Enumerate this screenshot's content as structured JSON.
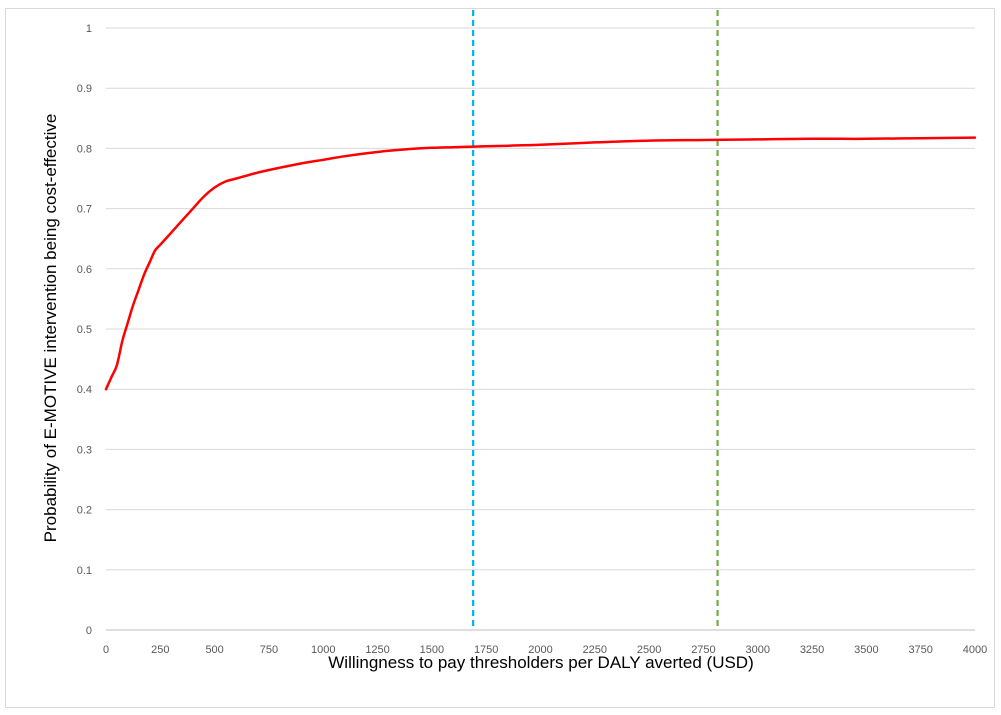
{
  "chart_data": {
    "type": "line",
    "title": "",
    "xlabel": "Willingness to pay thresholders per DALY averted (USD)",
    "ylabel": "Probability of E-MOTIVE intervention being cost-effective",
    "xlim": [
      0,
      4000
    ],
    "ylim": [
      0,
      1
    ],
    "x_ticks": [
      0,
      250,
      500,
      750,
      1000,
      1250,
      1500,
      1750,
      2000,
      2250,
      2500,
      2750,
      3000,
      3250,
      3500,
      3750,
      4000
    ],
    "y_ticks": [
      0,
      0.1,
      0.2,
      0.3,
      0.4,
      0.5,
      0.6,
      0.7,
      0.8,
      0.9,
      1
    ],
    "y_tick_labels": [
      "0",
      "0.1",
      "0.2",
      "0.3",
      "0.4",
      "0.5",
      "0.6",
      "0.7",
      "0.8",
      "0.9",
      "1"
    ],
    "grid": "horizontal",
    "legend": "none",
    "series": [
      {
        "color": "#ff0000",
        "x": [
          0,
          25,
          50,
          75,
          100,
          125,
          150,
          175,
          200,
          225,
          250,
          300,
          350,
          400,
          450,
          500,
          550,
          600,
          700,
          800,
          900,
          1000,
          1100,
          1200,
          1300,
          1400,
          1500,
          1600,
          1700,
          1800,
          2000,
          2250,
          2500,
          2750,
          3000,
          3250,
          3500,
          3750,
          4000
        ],
        "y": [
          0.4,
          0.42,
          0.44,
          0.48,
          0.51,
          0.54,
          0.565,
          0.59,
          0.61,
          0.63,
          0.64,
          0.66,
          0.68,
          0.7,
          0.72,
          0.735,
          0.745,
          0.75,
          0.76,
          0.768,
          0.775,
          0.781,
          0.787,
          0.792,
          0.796,
          0.799,
          0.801,
          0.802,
          0.803,
          0.804,
          0.806,
          0.81,
          0.813,
          0.814,
          0.815,
          0.816,
          0.816,
          0.817,
          0.818
        ]
      }
    ],
    "reference_lines": [
      {
        "orientation": "vertical",
        "x": 1690,
        "color": "#00b0f0",
        "style": "dashed"
      },
      {
        "orientation": "vertical",
        "x": 2815,
        "color": "#70ad47",
        "style": "dashed"
      }
    ]
  }
}
